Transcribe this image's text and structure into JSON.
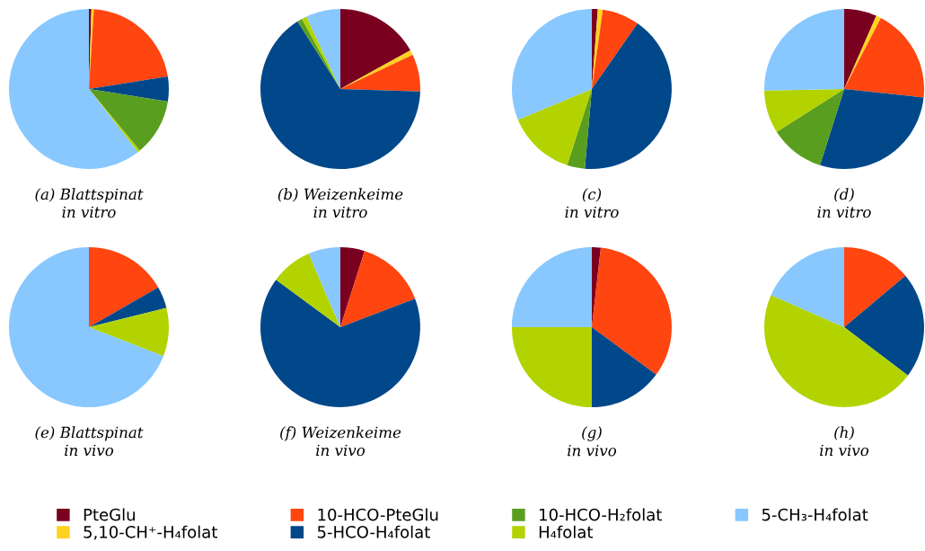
{
  "chart_data": [
    {
      "type": "pie",
      "title": "(a) Blattspinat\nin vitro",
      "legend": "bottom",
      "categories": [
        "PteGlu",
        "5,10-CH⁺-H₄folat",
        "10-HCO-PteGlu",
        "5-HCO-H₄folat",
        "10-HCO-H₂folat",
        "H₄folat",
        "5-CH₃-H₄folat"
      ],
      "colors": [
        "#7a0020",
        "#ffd21f",
        "#ff4510",
        "#00488a",
        "#5a9e1f",
        "#b2d300",
        "#88c8ff"
      ],
      "values": [
        0.5,
        0.5,
        21.5,
        5,
        11.5,
        0.5,
        60.5
      ]
    },
    {
      "type": "pie",
      "title": "(b) Weizenkeime\nin vitro",
      "categories": [
        null,
        null,
        null,
        null,
        null,
        null,
        null
      ],
      "colors": [
        "#7a0020",
        "#ffd21f",
        "#ff4510",
        "#00488a",
        "#5a9e1f",
        "#b2d300",
        "#88c8ff"
      ],
      "values": [
        17,
        1,
        7.5,
        65.5,
        1,
        1,
        7
      ]
    },
    {
      "type": "pie",
      "title": "(c)\nin vitro",
      "categories": [
        null,
        null,
        null,
        null,
        null,
        null,
        null
      ],
      "colors": [
        "#7a0020",
        "#ffd21f",
        "#ff4510",
        "#00488a",
        "#5a9e1f",
        "#b2d300",
        "#88c8ff"
      ],
      "values": [
        1.2,
        1,
        7.5,
        41.7,
        3.6,
        13.7,
        31.3
      ]
    },
    {
      "type": "pie",
      "title": "(d)\nin vitro",
      "categories": [
        null,
        null,
        null,
        null,
        null,
        null,
        null
      ],
      "colors": [
        "#7a0020",
        "#ffd21f",
        "#ff4510",
        "#00488a",
        "#5a9e1f",
        "#b2d300",
        "#88c8ff"
      ],
      "values": [
        6.6,
        1,
        19.1,
        28.2,
        11.1,
        8.7,
        25.3
      ]
    },
    {
      "type": "pie",
      "title": "(e) Blattspinat\nin vivo",
      "categories": [
        null,
        null,
        null,
        null,
        null,
        null,
        null
      ],
      "colors": [
        "#7a0020",
        "#ffd21f",
        "#ff4510",
        "#00488a",
        "#5a9e1f",
        "#b2d300",
        "#88c8ff"
      ],
      "values": [
        0,
        0,
        16.7,
        4.4,
        0,
        9.8,
        69.1
      ]
    },
    {
      "type": "pie",
      "title": "(f) Weizenkeime\nin vivo",
      "categories": [
        null,
        null,
        null,
        null,
        null,
        null,
        null
      ],
      "colors": [
        "#7a0020",
        "#ffd21f",
        "#ff4510",
        "#00488a",
        "#5a9e1f",
        "#b2d300",
        "#88c8ff"
      ],
      "values": [
        4.9,
        0,
        14.3,
        65.9,
        0,
        8.4,
        6.5
      ]
    },
    {
      "type": "pie",
      "title": "(g)\nin vivo",
      "categories": [
        null,
        null,
        null,
        null,
        null,
        null,
        null
      ],
      "colors": [
        "#7a0020",
        "#ffd21f",
        "#ff4510",
        "#00488a",
        "#5a9e1f",
        "#b2d300",
        "#88c8ff"
      ],
      "values": [
        1.8,
        0,
        33.3,
        14.9,
        0,
        25,
        25
      ]
    },
    {
      "type": "pie",
      "title": "(h)\nin vivo",
      "categories": [
        null,
        null,
        null,
        null,
        null,
        null,
        null
      ],
      "colors": [
        "#7a0020",
        "#ffd21f",
        "#ff4510",
        "#00488a",
        "#5a9e1f",
        "#b2d300",
        "#88c8ff"
      ],
      "values": [
        0,
        0,
        13.9,
        21.4,
        0,
        46.3,
        18.4
      ]
    }
  ]
}
